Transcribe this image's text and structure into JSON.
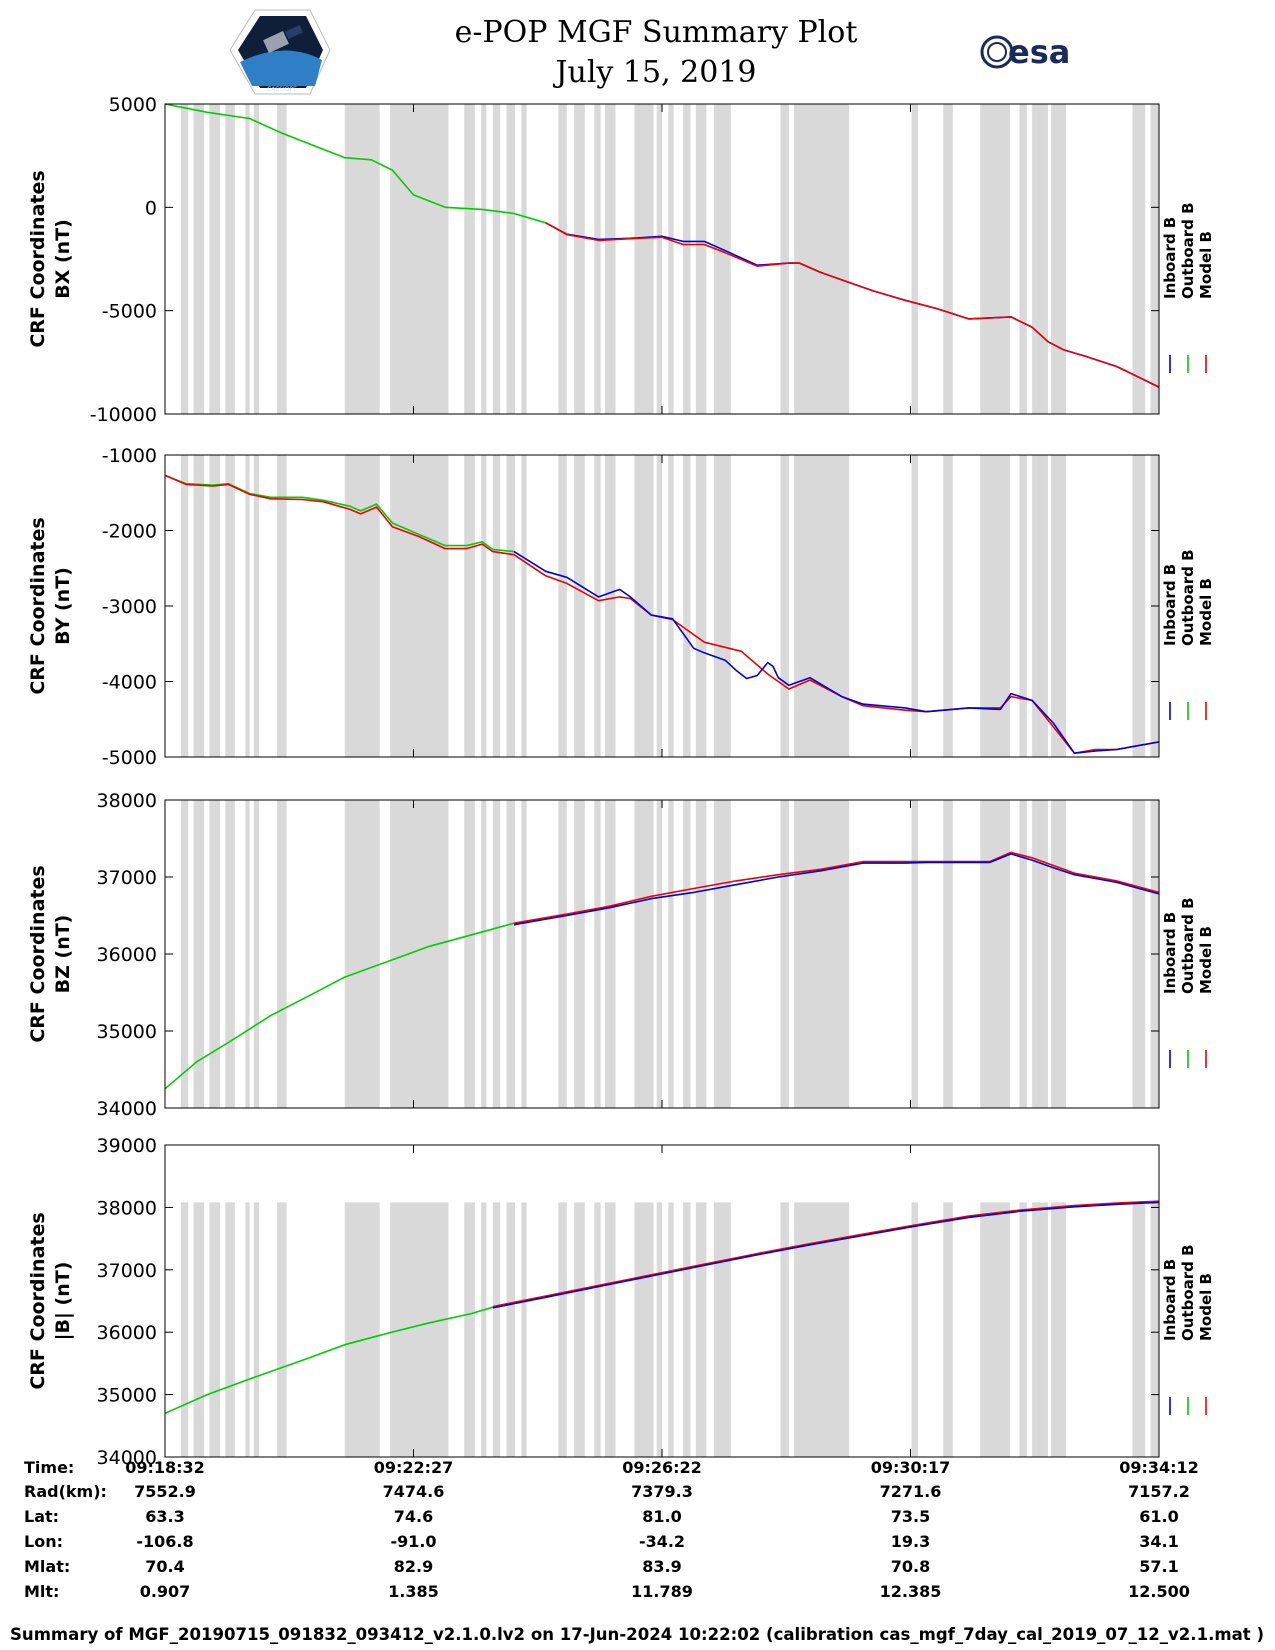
{
  "header": {
    "title_line1": "e-POP MGF Summary Plot",
    "title_line2": "July 15, 2019",
    "logo_left_text": "CASSIOPE",
    "logo_right_text": "esa"
  },
  "colors": {
    "inboard": "#0000dd",
    "outboard": "#00cc00",
    "model": "#ee0000",
    "shade": "#d9d9d9"
  },
  "legend": [
    {
      "label": "Inboard B",
      "color": "#0000dd"
    },
    {
      "label": "Outboard B",
      "color": "#00cc00"
    },
    {
      "label": "Model B",
      "color": "#ee0000"
    }
  ],
  "x_axis": {
    "range_seconds": [
      0,
      940
    ],
    "tick_seconds": [
      0,
      235,
      470,
      705,
      940
    ],
    "tick_labels": [
      "09:18:32",
      "09:22:27",
      "09:26:22",
      "09:30:17",
      "09:34:12"
    ]
  },
  "shaded_intervals_seconds": [
    [
      15,
      22
    ],
    [
      27,
      37
    ],
    [
      42,
      52
    ],
    [
      57,
      66
    ],
    [
      76,
      80
    ],
    [
      84,
      89
    ],
    [
      106,
      115
    ],
    [
      170,
      203
    ],
    [
      213,
      268
    ],
    [
      283,
      293
    ],
    [
      299,
      304
    ],
    [
      310,
      317
    ],
    [
      323,
      331
    ],
    [
      337,
      342
    ],
    [
      372,
      380
    ],
    [
      387,
      397
    ],
    [
      406,
      412
    ],
    [
      416,
      426
    ],
    [
      444,
      462
    ],
    [
      465,
      470
    ],
    [
      476,
      481
    ],
    [
      490,
      497
    ],
    [
      502,
      512
    ],
    [
      519,
      535
    ],
    [
      582,
      590
    ],
    [
      595,
      647
    ],
    [
      706,
      712
    ],
    [
      736,
      745
    ],
    [
      771,
      799
    ],
    [
      808,
      815
    ],
    [
      820,
      835
    ],
    [
      838,
      852
    ],
    [
      915,
      927
    ],
    [
      932,
      940
    ]
  ],
  "chart_data": [
    {
      "type": "line",
      "title": "",
      "ylabel_line1": "CRF Coordinates",
      "ylabel_line2": "BX (nT)",
      "ylim": [
        -10000,
        5000
      ],
      "yticks": [
        -10000,
        -5000,
        0,
        5000
      ],
      "ytick_labels": [
        "-10000",
        "-5000",
        "0",
        "5000"
      ],
      "shade_ylim": [
        -10000,
        5000
      ],
      "series": [
        {
          "name": "Outboard B",
          "x": [
            0,
            40,
            80,
            110,
            170,
            195,
            215,
            235,
            265,
            300,
            330,
            360
          ],
          "values": [
            5000,
            4600,
            4300,
            3600,
            2400,
            2300,
            1800,
            600,
            0,
            -100,
            -300,
            -750
          ]
        },
        {
          "name": "Inboard B",
          "x": [
            360,
            380,
            410,
            440,
            470,
            490,
            510,
            530,
            560,
            590,
            600,
            620,
            645,
            670,
            700,
            730,
            760,
            780,
            800,
            820,
            835,
            850,
            870,
            900,
            940
          ],
          "values": [
            -750,
            -1300,
            -1550,
            -1500,
            -1400,
            -1650,
            -1650,
            -2100,
            -2800,
            -2700,
            -2700,
            -3150,
            -3600,
            -4050,
            -4500,
            -4900,
            -5400,
            -5350,
            -5300,
            -5800,
            -6500,
            -6900,
            -7200,
            -7700,
            -8700
          ]
        },
        {
          "name": "Model B",
          "x": [
            360,
            380,
            410,
            440,
            470,
            490,
            510,
            530,
            560,
            590,
            600,
            620,
            645,
            670,
            700,
            730,
            760,
            780,
            800,
            820,
            835,
            850,
            870,
            900,
            940
          ],
          "values": [
            -750,
            -1320,
            -1600,
            -1520,
            -1450,
            -1800,
            -1800,
            -2200,
            -2850,
            -2700,
            -2700,
            -3150,
            -3600,
            -4050,
            -4500,
            -4900,
            -5400,
            -5350,
            -5300,
            -5800,
            -6500,
            -6900,
            -7200,
            -7700,
            -8700
          ]
        }
      ]
    },
    {
      "type": "line",
      "title": "",
      "ylabel_line1": "CRF Coordinates",
      "ylabel_line2": "BY (nT)",
      "ylim": [
        -5000,
        -1000
      ],
      "yticks": [
        -5000,
        -4000,
        -3000,
        -2000,
        -1000
      ],
      "ytick_labels": [
        "-5000",
        "-4000",
        "-3000",
        "-2000",
        "-1000"
      ],
      "shade_ylim": [
        -5000,
        -1000
      ],
      "series": [
        {
          "name": "Outboard B",
          "x": [
            0,
            20,
            45,
            60,
            80,
            100,
            130,
            150,
            175,
            185,
            200,
            215,
            240,
            265,
            285,
            300,
            310,
            330
          ],
          "values": [
            -1270,
            -1380,
            -1400,
            -1380,
            -1510,
            -1560,
            -1560,
            -1600,
            -1680,
            -1740,
            -1650,
            -1900,
            -2050,
            -2200,
            -2200,
            -2150,
            -2250,
            -2280
          ]
        },
        {
          "name": "Model B",
          "x": [
            0,
            20,
            45,
            60,
            80,
            100,
            130,
            150,
            175,
            185,
            200,
            215,
            240,
            265,
            285,
            300,
            310,
            330,
            360,
            380,
            410,
            430,
            440,
            460,
            480,
            510,
            545,
            570,
            590,
            610,
            640,
            660,
            700,
            720,
            760,
            790,
            800,
            820,
            840,
            860,
            880,
            900,
            940
          ],
          "values": [
            -1270,
            -1390,
            -1410,
            -1390,
            -1520,
            -1580,
            -1590,
            -1620,
            -1720,
            -1780,
            -1690,
            -1950,
            -2080,
            -2240,
            -2240,
            -2180,
            -2280,
            -2320,
            -2600,
            -2700,
            -2930,
            -2880,
            -2900,
            -3120,
            -3180,
            -3480,
            -3600,
            -3900,
            -4100,
            -3980,
            -4200,
            -4320,
            -4380,
            -4400,
            -4350,
            -4350,
            -4200,
            -4250,
            -4600,
            -4950,
            -4900,
            -4900,
            -4800
          ]
        },
        {
          "name": "Inboard B",
          "x": [
            330,
            360,
            380,
            410,
            430,
            440,
            460,
            480,
            500,
            510,
            530,
            540,
            550,
            560,
            570,
            575,
            580,
            590,
            610,
            640,
            660,
            700,
            720,
            760,
            790,
            800,
            820,
            840,
            860,
            880,
            900,
            940
          ],
          "values": [
            -2280,
            -2540,
            -2620,
            -2880,
            -2780,
            -2880,
            -3120,
            -3170,
            -3560,
            -3620,
            -3720,
            -3850,
            -3960,
            -3920,
            -3750,
            -3800,
            -3950,
            -4050,
            -3950,
            -4200,
            -4300,
            -4350,
            -4400,
            -4350,
            -4370,
            -4160,
            -4250,
            -4550,
            -4950,
            -4920,
            -4900,
            -4800
          ]
        }
      ]
    },
    {
      "type": "line",
      "title": "",
      "ylabel_line1": "CRF Coordinates",
      "ylabel_line2": "BZ (nT)",
      "ylim": [
        34000,
        38000
      ],
      "yticks": [
        34000,
        35000,
        36000,
        37000,
        38000
      ],
      "ytick_labels": [
        "34000",
        "35000",
        "36000",
        "37000",
        "38000"
      ],
      "shade_ylim": [
        34000,
        38000
      ],
      "series": [
        {
          "name": "Outboard B",
          "x": [
            0,
            30,
            60,
            100,
            135,
            170,
            210,
            250,
            290,
            330
          ],
          "values": [
            34250,
            34600,
            34850,
            35200,
            35450,
            35700,
            35900,
            36100,
            36250,
            36400
          ]
        },
        {
          "name": "Model B",
          "x": [
            330,
            380,
            420,
            460,
            500,
            540,
            580,
            620,
            660,
            700,
            720,
            760,
            780,
            800,
            820,
            840,
            860,
            880,
            900,
            940
          ],
          "values": [
            36400,
            36520,
            36620,
            36750,
            36850,
            36950,
            37030,
            37100,
            37200,
            37200,
            37200,
            37200,
            37200,
            37320,
            37250,
            37150,
            37050,
            37000,
            36950,
            36800
          ]
        },
        {
          "name": "Inboard B",
          "x": [
            330,
            380,
            420,
            460,
            500,
            540,
            580,
            620,
            660,
            700,
            720,
            760,
            780,
            800,
            820,
            840,
            860,
            880,
            900,
            940
          ],
          "values": [
            36380,
            36500,
            36600,
            36720,
            36800,
            36900,
            37000,
            37080,
            37180,
            37180,
            37190,
            37190,
            37190,
            37300,
            37220,
            37120,
            37030,
            36980,
            36930,
            36780
          ]
        }
      ]
    },
    {
      "type": "line",
      "title": "",
      "ylabel_line1": "CRF Coordinates",
      "ylabel_line2": "|B| (nT)",
      "ylim": [
        34000,
        39000
      ],
      "yticks": [
        34000,
        35000,
        36000,
        37000,
        38000,
        39000
      ],
      "ytick_labels": [
        "34000",
        "35000",
        "36000",
        "37000",
        "38000",
        "39000"
      ],
      "shade_ylim": [
        34000,
        38080
      ],
      "series": [
        {
          "name": "Outboard B",
          "x": [
            0,
            40,
            80,
            130,
            170,
            210,
            250,
            290,
            310
          ],
          "values": [
            34700,
            35000,
            35250,
            35550,
            35800,
            35980,
            36150,
            36300,
            36400
          ]
        },
        {
          "name": "Model B",
          "x": [
            310,
            360,
            410,
            460,
            510,
            560,
            610,
            660,
            710,
            760,
            810,
            860,
            900,
            940
          ],
          "values": [
            36410,
            36580,
            36750,
            36920,
            37090,
            37260,
            37420,
            37570,
            37720,
            37860,
            37960,
            38030,
            38070,
            38100
          ]
        },
        {
          "name": "Inboard B",
          "x": [
            310,
            360,
            410,
            460,
            510,
            560,
            610,
            660,
            710,
            760,
            810,
            860,
            900,
            940
          ],
          "values": [
            36390,
            36560,
            36730,
            36900,
            37070,
            37240,
            37400,
            37550,
            37700,
            37840,
            37940,
            38010,
            38050,
            38080
          ]
        }
      ]
    }
  ],
  "ephemeris": {
    "rows": [
      {
        "label": "Time:",
        "values": [
          "09:18:32",
          "09:22:27",
          "09:26:22",
          "09:30:17",
          "09:34:12"
        ]
      },
      {
        "label": "Rad(km):",
        "values": [
          "7552.9",
          "7474.6",
          "7379.3",
          "7271.6",
          "7157.2"
        ]
      },
      {
        "label": "Lat:",
        "values": [
          "63.3",
          "74.6",
          "81.0",
          "73.5",
          "61.0"
        ]
      },
      {
        "label": "Lon:",
        "values": [
          "-106.8",
          "-91.0",
          "-34.2",
          "19.3",
          "34.1"
        ]
      },
      {
        "label": "Mlat:",
        "values": [
          "70.4",
          "82.9",
          "83.9",
          "70.8",
          "57.1"
        ]
      },
      {
        "label": "Mlt:",
        "values": [
          "0.907",
          "1.385",
          "11.789",
          "12.385",
          "12.500"
        ]
      }
    ]
  },
  "footer": "Summary of MGF_20190715_091832_093412_v2.1.0.lv2 on 17-Jun-2024 10:22:02 (calibration cas_mgf_7day_cal_2019_07_12_v2.1.mat )"
}
